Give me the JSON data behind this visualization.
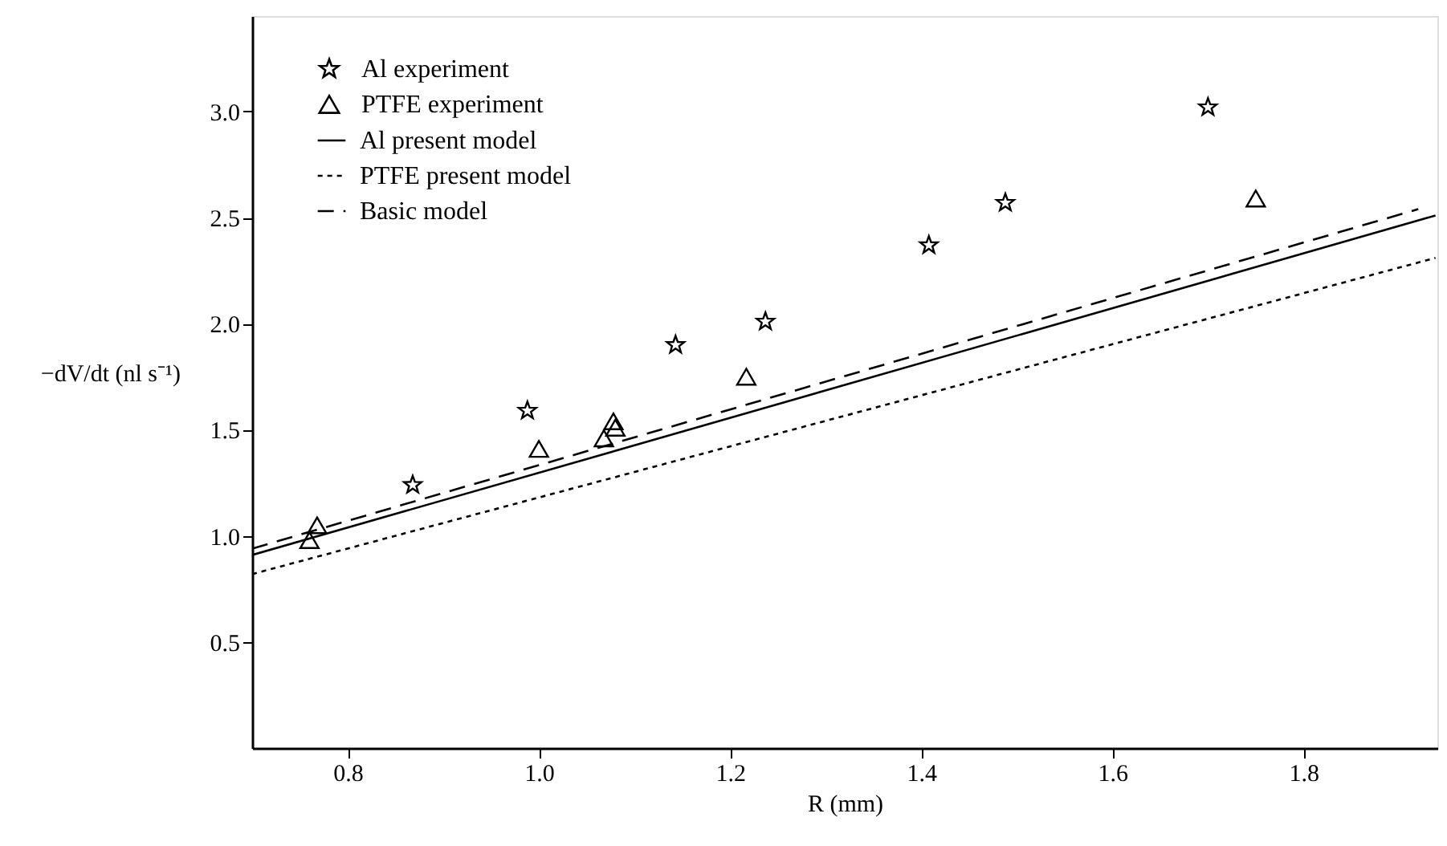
{
  "chart_data": {
    "type": "scatter",
    "xlabel": "R (mm)",
    "ylabel": "−dV/dt (nl s⁻¹)",
    "xlim": [
      0.7,
      1.94
    ],
    "ylim": [
      0,
      3.45
    ],
    "xticks": [
      0.8,
      {
        "value": 1.0,
        "label": "1.0"
      },
      1.2,
      1.4,
      1.6,
      1.8
    ],
    "yticks": [
      0.5,
      {
        "value": 1.0,
        "label": "1.0"
      },
      1.5,
      {
        "value": 2.0,
        "label": "2.0"
      },
      2.5,
      {
        "value": 3.0,
        "label": "3.0"
      }
    ],
    "grid": false,
    "legend": "top left",
    "series": [
      {
        "name": "Al experiment",
        "marker": "star",
        "color": "#000000",
        "x": [
          0.868,
          0.988,
          1.143,
          1.237,
          1.408,
          1.488,
          1.7
        ],
        "values": [
          1.24,
          1.59,
          1.9,
          2.01,
          2.37,
          2.57,
          3.02
        ]
      },
      {
        "name": "PTFE experiment",
        "marker": "triangle",
        "color": "#000000",
        "x": [
          0.76,
          0.768,
          1.0,
          1.068,
          1.078,
          1.08,
          1.217,
          1.75
        ],
        "values": [
          0.98,
          1.05,
          1.41,
          1.46,
          1.54,
          1.51,
          1.75,
          2.59
        ]
      },
      {
        "name": "Al present model",
        "type": "line",
        "line_style": "solid",
        "color": "#000000",
        "x": [
          0.7,
          1.938
        ],
        "values": [
          0.91,
          2.51
        ]
      },
      {
        "name": "PTFE present model",
        "type": "line",
        "line_style": "dotted",
        "color": "#000000",
        "x": [
          0.7,
          1.938
        ],
        "values": [
          0.82,
          2.31
        ]
      },
      {
        "name": "Basic model",
        "type": "line",
        "line_style": "dashed",
        "color": "#000000",
        "x": [
          0.7,
          1.92
        ],
        "values": [
          0.94,
          2.54
        ]
      }
    ]
  }
}
